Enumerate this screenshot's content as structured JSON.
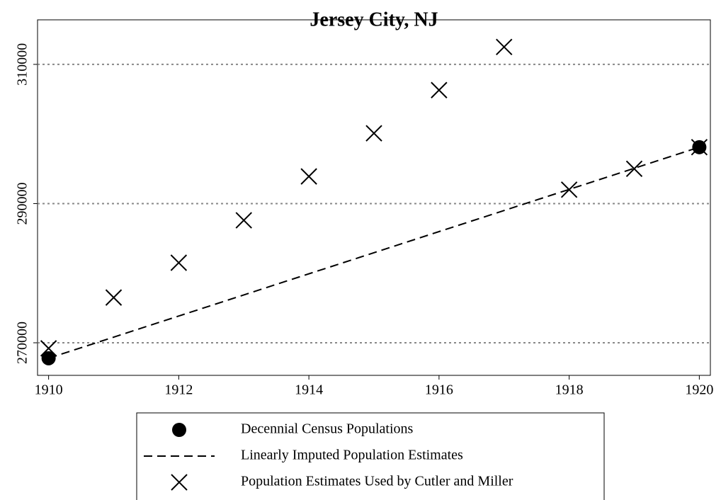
{
  "chart_data": {
    "type": "scatter",
    "title": "Jersey City, NJ",
    "series": [
      {
        "name": "Decennial Census Populations",
        "color": "#000000",
        "marker": "circle",
        "x": [
          1910,
          1920
        ],
        "values": [
          267779,
          298103
        ]
      },
      {
        "name": "Linearly Imputed Population Estimates",
        "color": "#000000",
        "marker": "dashed-line",
        "x": [
          1910,
          1920
        ],
        "values": [
          267779,
          298103
        ]
      },
      {
        "name": "Population Estimates Used by Cutler and Miller",
        "color": "#000000",
        "marker": "x",
        "x": [
          1910,
          1911,
          1912,
          1913,
          1914,
          1915,
          1916,
          1917,
          1918,
          1919,
          1920
        ],
        "values": [
          269200,
          276500,
          281500,
          287600,
          293900,
          300100,
          306300,
          312500,
          292000,
          295000,
          298100
        ]
      }
    ],
    "xlim": [
      1909.83,
      1920.17
    ],
    "xticks": [
      1910,
      1912,
      1914,
      1916,
      1918,
      1920
    ],
    "ylim": [
      265320,
      316400
    ],
    "yticks": [
      270000,
      290000,
      310000
    ],
    "grid": true,
    "legend": "bottom"
  }
}
